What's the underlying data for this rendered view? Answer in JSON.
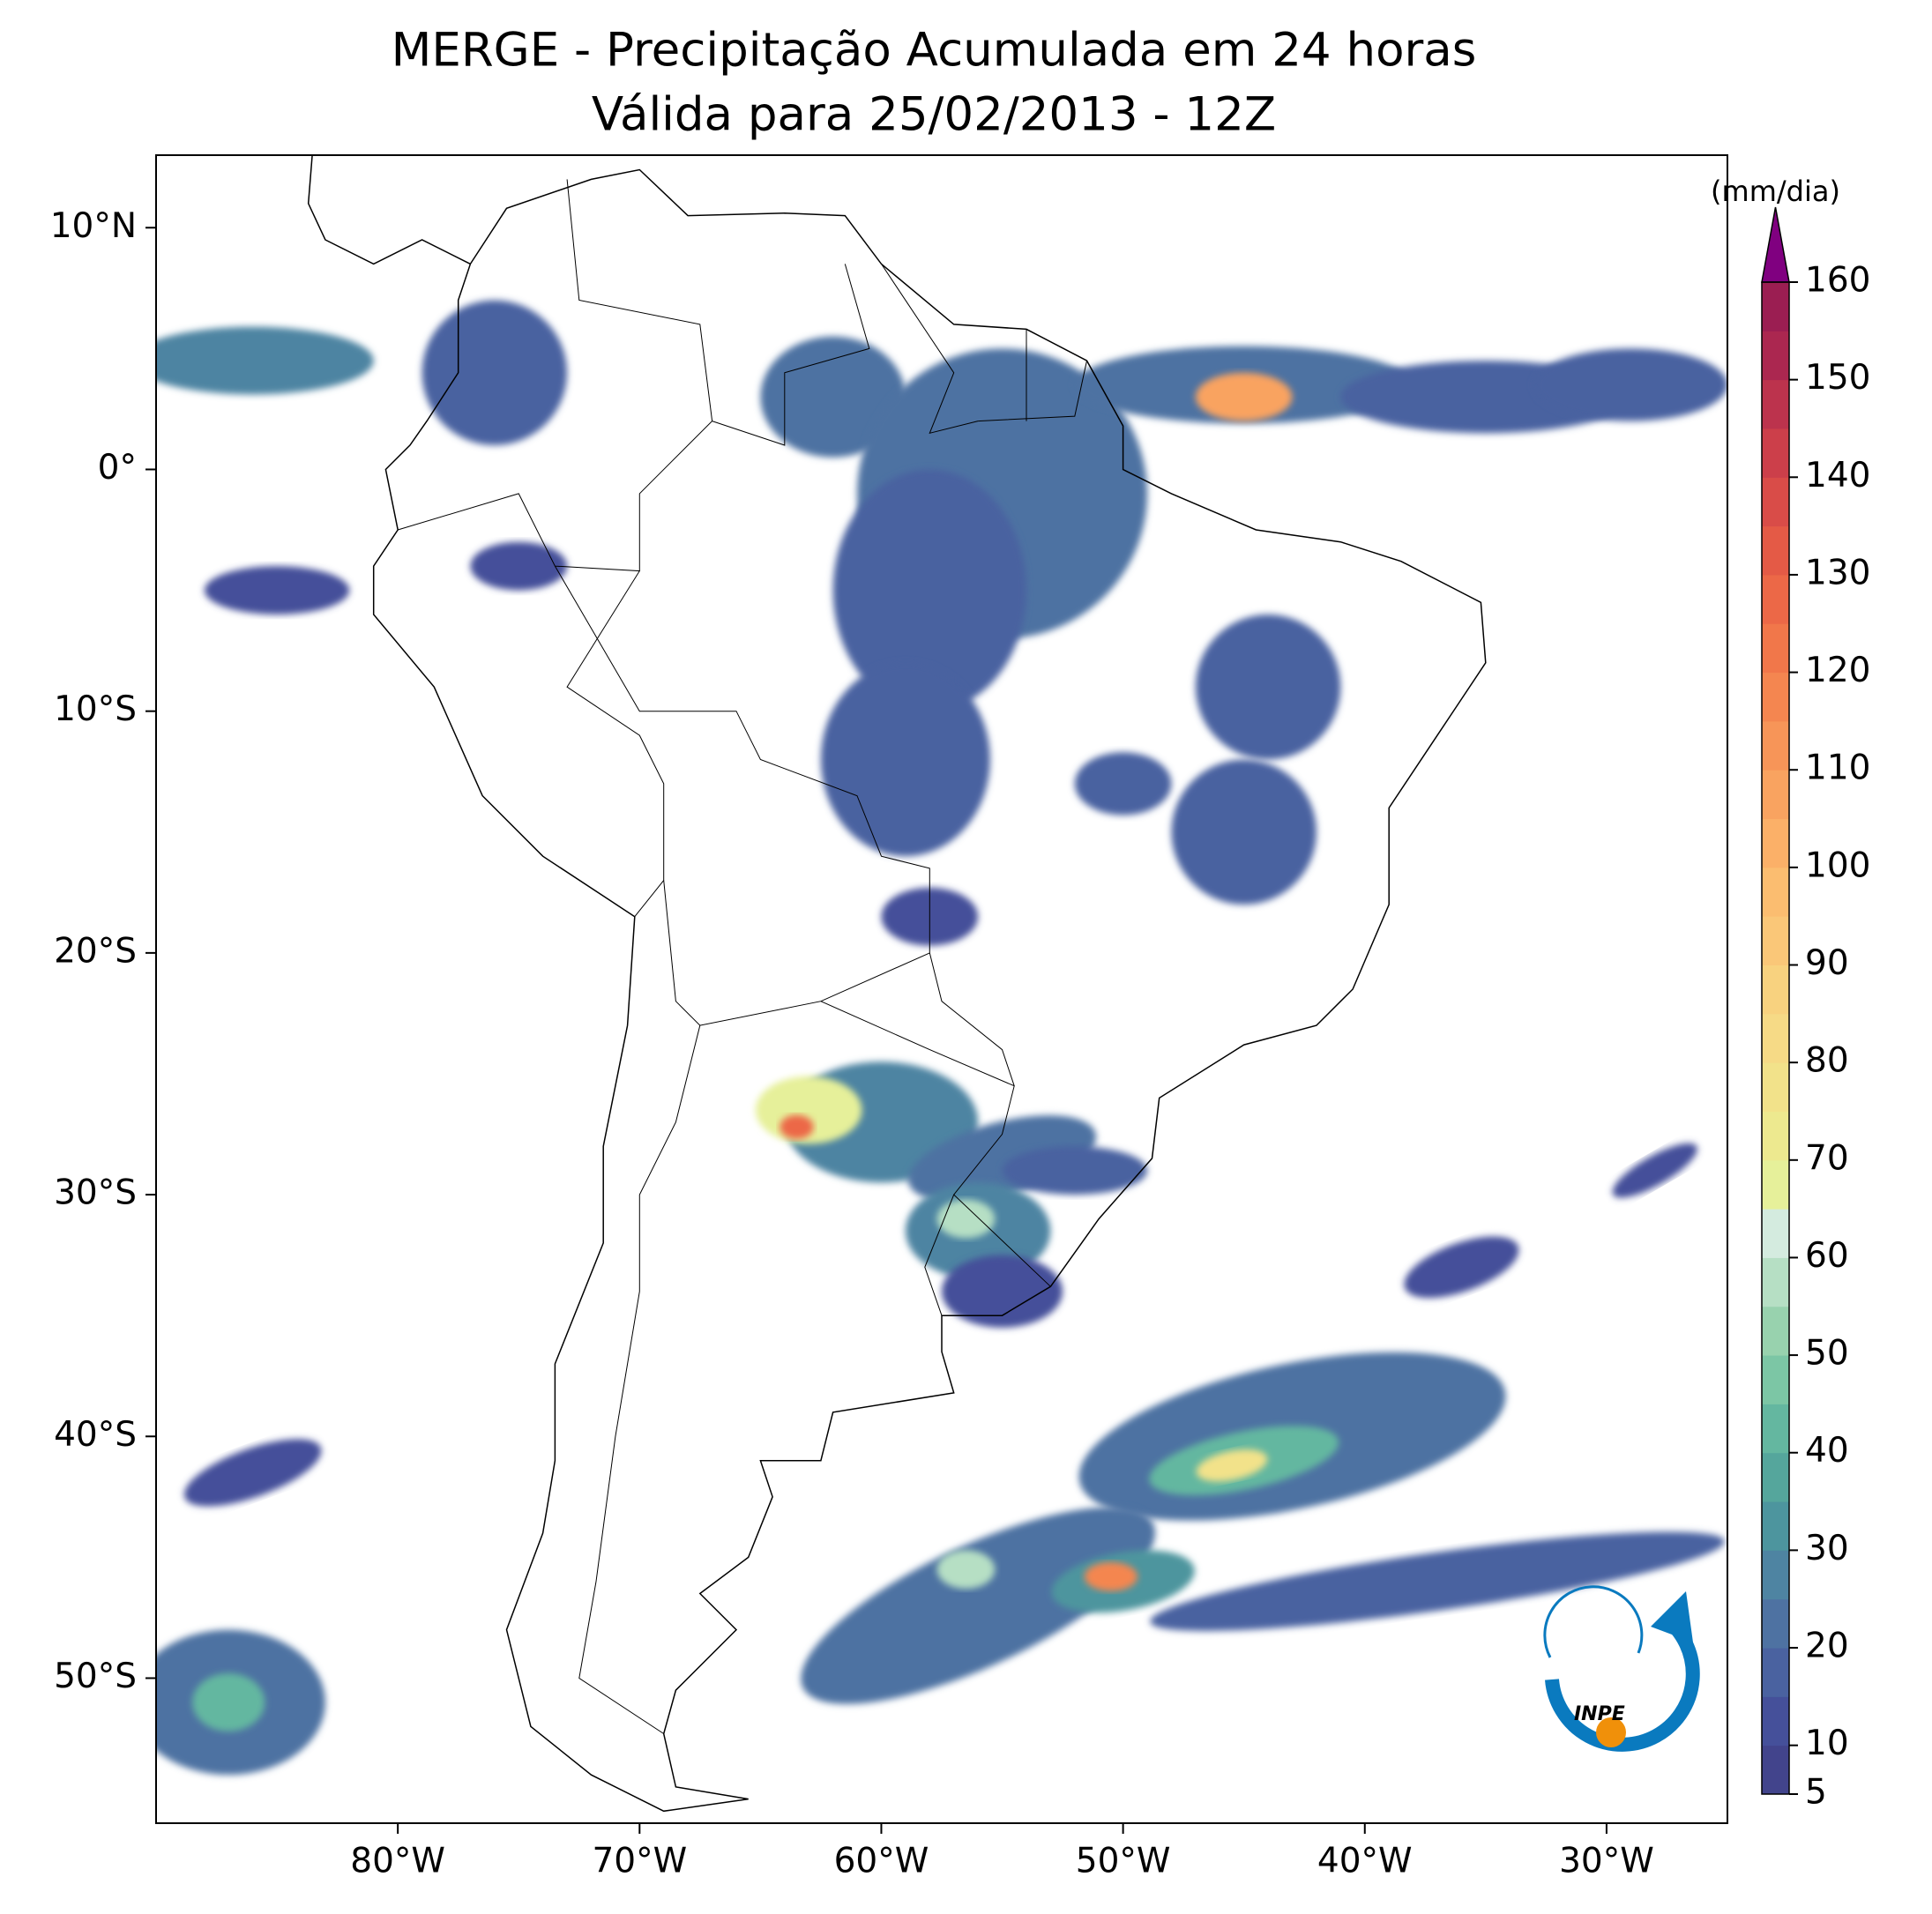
{
  "chart_data": {
    "type": "map",
    "title": "MERGE - Precipitação Acumulada em 24 horas",
    "subtitle": "Válida para 25/02/2013 - 12Z",
    "xlim": [
      -90,
      -25
    ],
    "ylim": [
      -56,
      13
    ],
    "xticks": [
      {
        "value": -80,
        "label": "80°W"
      },
      {
        "value": -70,
        "label": "70°W"
      },
      {
        "value": -60,
        "label": "60°W"
      },
      {
        "value": -50,
        "label": "50°W"
      },
      {
        "value": -40,
        "label": "40°W"
      },
      {
        "value": -30,
        "label": "30°W"
      }
    ],
    "yticks": [
      {
        "value": 10,
        "label": "10°N"
      },
      {
        "value": 0,
        "label": "0°"
      },
      {
        "value": -10,
        "label": "10°S"
      },
      {
        "value": -20,
        "label": "20°S"
      },
      {
        "value": -30,
        "label": "30°S"
      },
      {
        "value": -40,
        "label": "40°S"
      },
      {
        "value": -50,
        "label": "50°S"
      }
    ],
    "colorbar": {
      "label": "(mm/dia)",
      "lim": [
        5,
        160
      ],
      "ticks": [
        5,
        10,
        20,
        30,
        40,
        50,
        60,
        70,
        80,
        90,
        100,
        110,
        120,
        130,
        140,
        150,
        160
      ],
      "levels": [
        5,
        10,
        15,
        20,
        25,
        30,
        35,
        40,
        45,
        50,
        55,
        60,
        65,
        70,
        75,
        80,
        85,
        90,
        95,
        100,
        105,
        110,
        115,
        120,
        125,
        130,
        135,
        140,
        145,
        150,
        155,
        160
      ],
      "colors": [
        "#42448c",
        "#45509a",
        "#4a62a0",
        "#4e72a2",
        "#4e84a2",
        "#4d959e",
        "#55a69c",
        "#64b7a0",
        "#7cc6a5",
        "#98d2ae",
        "#b6dfc4",
        "#d4ebdf",
        "#e6f09a",
        "#ede98f",
        "#f2e28a",
        "#f6da86",
        "#f8d27f",
        "#fac778",
        "#fbbd70",
        "#fbb068",
        "#f9a360",
        "#f79558",
        "#f48650",
        "#f1774a",
        "#ec6847",
        "#e45a46",
        "#d94c48",
        "#cc3f4a",
        "#bc334d",
        "#ab2750",
        "#9b1e52"
      ],
      "extend_color": "#800080"
    },
    "logo_text": "INPE"
  }
}
